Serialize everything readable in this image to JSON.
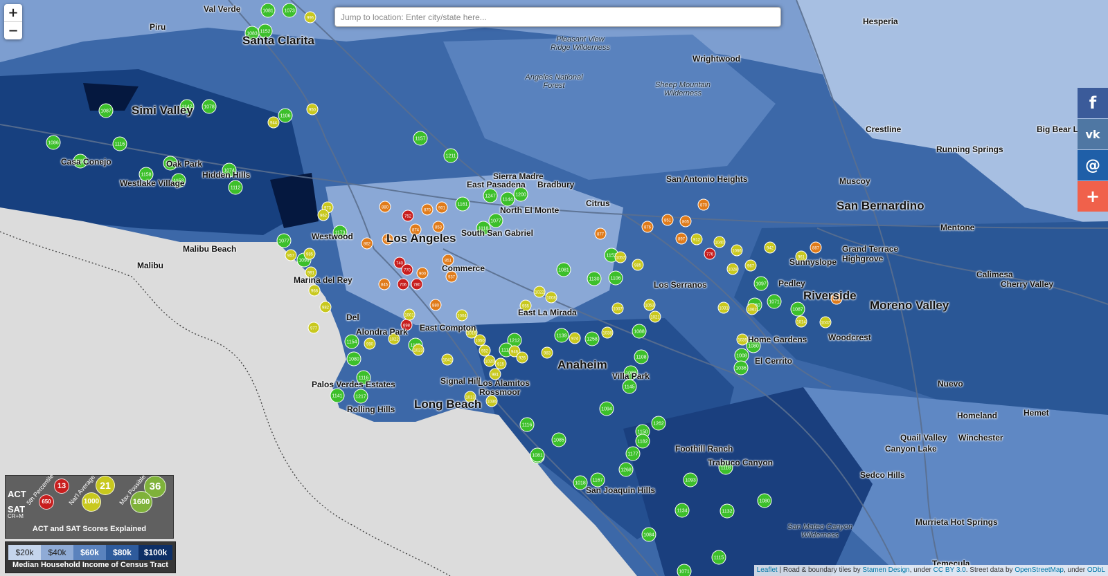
{
  "search": {
    "placeholder": "Jump to location: Enter city/state here..."
  },
  "zoom": {
    "in_label": "+",
    "out_label": "−"
  },
  "social": {
    "facebook": "f",
    "vk": "vk",
    "email": "@",
    "more": "+"
  },
  "colors": {
    "ocean": "#dcdcdc",
    "income_1": "#9fb8dc",
    "income_2": "#6f93c8",
    "income_3": "#4472b0",
    "income_4": "#1f4b8c",
    "income_5": "#0b2a5c",
    "score_red": "#c81e1e",
    "score_orange": "#e07b1a",
    "score_yellow": "#c8c81e",
    "score_green": "#3cbf2a"
  },
  "places": [
    {
      "id": "val-verde",
      "name": "Val Verde",
      "size": "small"
    },
    {
      "id": "santa-clarita",
      "name": "Santa Clarita",
      "size": "big"
    },
    {
      "id": "piru",
      "name": "Piru",
      "size": "small"
    },
    {
      "id": "simi-valley",
      "name": "Simi Valley",
      "size": "big"
    },
    {
      "id": "camarillo-oak",
      "name": "Oak Park",
      "size": "small"
    },
    {
      "id": "castle-conejo",
      "name": "Casa Conejo",
      "size": "small"
    },
    {
      "id": "westlake",
      "name": "Westlake Village",
      "size": "small"
    },
    {
      "id": "hidden-hills",
      "name": "Hidden Hills",
      "size": "small"
    },
    {
      "id": "malibu-beach",
      "name": "Malibu Beach",
      "size": "small"
    },
    {
      "id": "malibu",
      "name": "Malibu",
      "size": "small"
    },
    {
      "id": "westwood",
      "name": "Westwood",
      "size": "small"
    },
    {
      "id": "los-angeles",
      "name": "Los Angeles",
      "size": "big"
    },
    {
      "id": "marina",
      "name": "Marina del Rey",
      "size": "small"
    },
    {
      "id": "commerce",
      "name": "Commerce",
      "size": "small"
    },
    {
      "id": "del",
      "name": "Del",
      "size": "small"
    },
    {
      "id": "alondra",
      "name": "Alondra Park",
      "size": "small"
    },
    {
      "id": "east-compton",
      "name": "East Compton",
      "size": "small"
    },
    {
      "id": "palos-verdes",
      "name": "Palos Verdes Estates",
      "size": "small"
    },
    {
      "id": "rolling-hills",
      "name": "Rolling Hills",
      "size": "small"
    },
    {
      "id": "long-beach",
      "name": "Long Beach",
      "size": "big"
    },
    {
      "id": "signal-hill",
      "name": "Signal Hill",
      "size": "small"
    },
    {
      "id": "los-alamitos",
      "name": "Los Alamitos",
      "size": "small"
    },
    {
      "id": "rossmoor",
      "name": "Rossmoor",
      "size": "small"
    },
    {
      "id": "anaheim",
      "name": "Anaheim",
      "size": "big"
    },
    {
      "id": "villa-park",
      "name": "Villa Park",
      "size": "small"
    },
    {
      "id": "east-la-mirada",
      "name": "East La Mirada",
      "size": "small"
    },
    {
      "id": "sierra-madre",
      "name": "Sierra Madre",
      "size": "small"
    },
    {
      "id": "east-pasadena",
      "name": "East Pasadena",
      "size": "small"
    },
    {
      "id": "bradbury",
      "name": "Bradbury",
      "size": "small"
    },
    {
      "id": "north-el-monte",
      "name": "North El Monte",
      "size": "small"
    },
    {
      "id": "south-san-gabriel",
      "name": "South San Gabriel",
      "size": "small"
    },
    {
      "id": "citrus",
      "name": "Citrus",
      "size": "small"
    },
    {
      "id": "los-serranos",
      "name": "Los Serranos",
      "size": "small"
    },
    {
      "id": "san-antonio-heights",
      "name": "San Antonio Heights",
      "size": "small"
    },
    {
      "id": "wrightwood",
      "name": "Wrightwood",
      "size": "small"
    },
    {
      "id": "hesperia",
      "name": "Hesperia",
      "size": "small"
    },
    {
      "id": "crestline",
      "name": "Crestline",
      "size": "small"
    },
    {
      "id": "running-springs",
      "name": "Running Springs",
      "size": "small"
    },
    {
      "id": "big-bear",
      "name": "Big Bear L",
      "size": "small"
    },
    {
      "id": "muscoy",
      "name": "Muscoy",
      "size": "small"
    },
    {
      "id": "san-bernardino",
      "name": "San Bernardino",
      "size": "big"
    },
    {
      "id": "mentone",
      "name": "Mentone",
      "size": "small"
    },
    {
      "id": "grand-terrace",
      "name": "Grand Terrace",
      "size": "small"
    },
    {
      "id": "highgrove",
      "name": "Highgrove",
      "size": "small"
    },
    {
      "id": "sunnyslope",
      "name": "Sunnyslope",
      "size": "small"
    },
    {
      "id": "pedley",
      "name": "Pedley",
      "size": "small"
    },
    {
      "id": "riverside",
      "name": "Riverside",
      "size": "big"
    },
    {
      "id": "moreno-valley",
      "name": "Moreno Valley",
      "size": "big"
    },
    {
      "id": "calimesa",
      "name": "Calimesa",
      "size": "small"
    },
    {
      "id": "cherry-valley",
      "name": "Cherry Valley",
      "size": "small"
    },
    {
      "id": "home-gardens",
      "name": "Home Gardens",
      "size": "small"
    },
    {
      "id": "woodcrest",
      "name": "Woodcrest",
      "size": "small"
    },
    {
      "id": "el-cerrito",
      "name": "El Cerrito",
      "size": "small"
    },
    {
      "id": "nuevo",
      "name": "Nuevo",
      "size": "small"
    },
    {
      "id": "homeland",
      "name": "Homeland",
      "size": "small"
    },
    {
      "id": "hemet",
      "name": "Hemet",
      "size": "small"
    },
    {
      "id": "quail-valley",
      "name": "Quail Valley",
      "size": "small"
    },
    {
      "id": "canyon-lake",
      "name": "Canyon Lake",
      "size": "small"
    },
    {
      "id": "winchester",
      "name": "Winchester",
      "size": "small"
    },
    {
      "id": "sedco-hills",
      "name": "Sedco Hills",
      "size": "small"
    },
    {
      "id": "foothill-ranch",
      "name": "Foothill Ranch",
      "size": "small"
    },
    {
      "id": "trabuco",
      "name": "Trabuco Canyon",
      "size": "small"
    },
    {
      "id": "san-joaquin-hills",
      "name": "San Joaquin Hills",
      "size": "small"
    },
    {
      "id": "temecula",
      "name": "Temecula",
      "size": "small"
    },
    {
      "id": "hot-springs",
      "name": "Murrieta Hot Springs",
      "size": "small"
    }
  ],
  "wilderness": [
    {
      "id": "pleasant-view",
      "name": "Pleasant View Ridge Wilderness"
    },
    {
      "id": "angeles-nf",
      "name": "Angeles National Forest"
    },
    {
      "id": "sheep-mountain",
      "name": "Sheep Mountain Wilderness"
    },
    {
      "id": "san-mateo",
      "name": "San Mateo Canyon Wilderness"
    }
  ],
  "markers": [
    {
      "id": "m1",
      "score": "1081",
      "level": "green"
    },
    {
      "id": "m2",
      "score": "1073",
      "level": "green"
    },
    {
      "id": "m3",
      "score": "996",
      "level": "yellow"
    },
    {
      "id": "m4",
      "score": "1152",
      "level": "green"
    },
    {
      "id": "m5",
      "score": "1083",
      "level": "green"
    },
    {
      "id": "m6",
      "score": "1087",
      "level": "green"
    },
    {
      "id": "m7",
      "score": "1147",
      "level": "green"
    },
    {
      "id": "m8",
      "score": "1078",
      "level": "green"
    },
    {
      "id": "m9",
      "score": "1086",
      "level": "green"
    },
    {
      "id": "m10",
      "score": "1116",
      "level": "green"
    },
    {
      "id": "m11",
      "score": "1135",
      "level": "green"
    },
    {
      "id": "m12",
      "score": "1150",
      "level": "green"
    },
    {
      "id": "m13",
      "score": "1158",
      "level": "green"
    },
    {
      "id": "m14",
      "score": "1152",
      "level": "green"
    },
    {
      "id": "m15",
      "score": "1112",
      "level": "green"
    },
    {
      "id": "m16",
      "score": "1074",
      "level": "green"
    },
    {
      "id": "m17",
      "score": "1106",
      "level": "green"
    },
    {
      "id": "m18",
      "score": "1077",
      "level": "green"
    },
    {
      "id": "m19",
      "score": "1173",
      "level": "green"
    },
    {
      "id": "m20",
      "score": "1099",
      "level": "green"
    },
    {
      "id": "m21",
      "score": "1211",
      "level": "green"
    },
    {
      "id": "m22",
      "score": "1157",
      "level": "green"
    },
    {
      "id": "m23",
      "score": "1247",
      "level": "green"
    },
    {
      "id": "m24",
      "score": "1144",
      "level": "green"
    },
    {
      "id": "m25",
      "score": "1200",
      "level": "green"
    },
    {
      "id": "m26",
      "score": "1161",
      "level": "green"
    },
    {
      "id": "m27",
      "score": "1077",
      "level": "green"
    },
    {
      "id": "m28",
      "score": "1118",
      "level": "green"
    },
    {
      "id": "m29",
      "score": "1153",
      "level": "green"
    },
    {
      "id": "m30",
      "score": "1130",
      "level": "green"
    },
    {
      "id": "m31",
      "score": "1106",
      "level": "green"
    },
    {
      "id": "m32",
      "score": "1081",
      "level": "green"
    },
    {
      "id": "m33",
      "score": "1139",
      "level": "green"
    },
    {
      "id": "m34",
      "score": "1258",
      "level": "green"
    },
    {
      "id": "m35",
      "score": "1212",
      "level": "green"
    },
    {
      "id": "m36",
      "score": "1118",
      "level": "green"
    },
    {
      "id": "m37",
      "score": "1165",
      "level": "green"
    },
    {
      "id": "m38",
      "score": "1154",
      "level": "green"
    },
    {
      "id": "m39",
      "score": "1080",
      "level": "green"
    },
    {
      "id": "m40",
      "score": "1116",
      "level": "green"
    },
    {
      "id": "m41",
      "score": "1217",
      "level": "green"
    },
    {
      "id": "m42",
      "score": "1141",
      "level": "green"
    },
    {
      "id": "m43",
      "score": "1262",
      "level": "green"
    },
    {
      "id": "m44",
      "score": "1150",
      "level": "green"
    },
    {
      "id": "m45",
      "score": "1182",
      "level": "green"
    },
    {
      "id": "m46",
      "score": "1177",
      "level": "green"
    },
    {
      "id": "m47",
      "score": "1268",
      "level": "green"
    },
    {
      "id": "m48",
      "score": "1167",
      "level": "green"
    },
    {
      "id": "m49",
      "score": "1093",
      "level": "green"
    },
    {
      "id": "m50",
      "score": "1118",
      "level": "green"
    },
    {
      "id": "m51",
      "score": "1132",
      "level": "green"
    },
    {
      "id": "m52",
      "score": "1134",
      "level": "green"
    },
    {
      "id": "m53",
      "score": "1084",
      "level": "green"
    },
    {
      "id": "m54",
      "score": "1071",
      "level": "green"
    },
    {
      "id": "m55",
      "score": "1115",
      "level": "green"
    },
    {
      "id": "m56",
      "score": "1088",
      "level": "green"
    },
    {
      "id": "m57",
      "score": "1108",
      "level": "green"
    },
    {
      "id": "m58",
      "score": "1088",
      "level": "green"
    },
    {
      "id": "m59",
      "score": "1145",
      "level": "green"
    },
    {
      "id": "m60",
      "score": "1094",
      "level": "green"
    },
    {
      "id": "m61",
      "score": "1116",
      "level": "green"
    },
    {
      "id": "m62",
      "score": "1085",
      "level": "green"
    },
    {
      "id": "m63",
      "score": "1089",
      "level": "green"
    },
    {
      "id": "m64",
      "score": "1081",
      "level": "green"
    },
    {
      "id": "m65",
      "score": "1018",
      "level": "green"
    },
    {
      "id": "m66",
      "score": "1080",
      "level": "green"
    },
    {
      "id": "m67",
      "score": "1008",
      "level": "green"
    },
    {
      "id": "m68",
      "score": "1036",
      "level": "green"
    },
    {
      "id": "m69",
      "score": "1060",
      "level": "green"
    },
    {
      "id": "m70",
      "score": "752",
      "level": "red"
    },
    {
      "id": "m71",
      "score": "740",
      "level": "red"
    },
    {
      "id": "m72",
      "score": "770",
      "level": "red"
    },
    {
      "id": "m73",
      "score": "706",
      "level": "red"
    },
    {
      "id": "m74",
      "score": "780",
      "level": "red"
    },
    {
      "id": "m75",
      "score": "698",
      "level": "red"
    },
    {
      "id": "m76",
      "score": "880",
      "level": "orange"
    },
    {
      "id": "m77",
      "score": "870",
      "level": "orange"
    },
    {
      "id": "m78",
      "score": "899",
      "level": "orange"
    },
    {
      "id": "m79",
      "score": "862",
      "level": "orange"
    },
    {
      "id": "m80",
      "score": "901",
      "level": "orange"
    },
    {
      "id": "m81",
      "score": "874",
      "level": "orange"
    },
    {
      "id": "m82",
      "score": "853",
      "level": "orange"
    },
    {
      "id": "m83",
      "score": "900",
      "level": "orange"
    },
    {
      "id": "m84",
      "score": "851",
      "level": "orange"
    },
    {
      "id": "m85",
      "score": "937",
      "level": "orange"
    },
    {
      "id": "m86",
      "score": "845",
      "level": "orange"
    },
    {
      "id": "m87",
      "score": "880",
      "level": "orange"
    },
    {
      "id": "m88",
      "score": "944",
      "level": "yellow"
    },
    {
      "id": "m89",
      "score": "950",
      "level": "yellow"
    },
    {
      "id": "m90",
      "score": "973",
      "level": "yellow"
    },
    {
      "id": "m91",
      "score": "962",
      "level": "yellow"
    },
    {
      "id": "m92",
      "score": "985",
      "level": "yellow"
    },
    {
      "id": "m93",
      "score": "957",
      "level": "yellow"
    },
    {
      "id": "m94",
      "score": "991",
      "level": "yellow"
    },
    {
      "id": "m95",
      "score": "968",
      "level": "yellow"
    },
    {
      "id": "m96",
      "score": "982",
      "level": "yellow"
    },
    {
      "id": "m97",
      "score": "977",
      "level": "yellow"
    },
    {
      "id": "m98",
      "score": "990",
      "level": "yellow"
    },
    {
      "id": "m99",
      "score": "1022",
      "level": "yellow"
    },
    {
      "id": "m100",
      "score": "1001",
      "level": "yellow"
    },
    {
      "id": "m101",
      "score": "1023",
      "level": "yellow"
    },
    {
      "id": "m102",
      "score": "1041",
      "level": "yellow"
    },
    {
      "id": "m103",
      "score": "1004",
      "level": "yellow"
    },
    {
      "id": "m104",
      "score": "1016",
      "level": "yellow"
    },
    {
      "id": "m105",
      "score": "1050",
      "level": "yellow"
    },
    {
      "id": "m106",
      "score": "1020",
      "level": "yellow"
    },
    {
      "id": "m107",
      "score": "1036",
      "level": "yellow"
    },
    {
      "id": "m108",
      "score": "1013",
      "level": "yellow"
    },
    {
      "id": "m109",
      "score": "981",
      "level": "yellow"
    },
    {
      "id": "m110",
      "score": "946",
      "level": "yellow"
    },
    {
      "id": "m111",
      "score": "926",
      "level": "yellow"
    },
    {
      "id": "m112",
      "score": "915",
      "level": "yellow"
    },
    {
      "id": "m113",
      "score": "955",
      "level": "yellow"
    },
    {
      "id": "m114",
      "score": "1022",
      "level": "yellow"
    },
    {
      "id": "m115",
      "score": "1008",
      "level": "yellow"
    },
    {
      "id": "m116",
      "score": "983",
      "level": "yellow"
    },
    {
      "id": "m117",
      "score": "952",
      "level": "yellow"
    },
    {
      "id": "m118",
      "score": "974",
      "level": "yellow"
    },
    {
      "id": "m119",
      "score": "1038",
      "level": "yellow"
    },
    {
      "id": "m120",
      "score": "1021",
      "level": "yellow"
    },
    {
      "id": "m121",
      "score": "1053",
      "level": "yellow"
    },
    {
      "id": "m122",
      "score": "1007",
      "level": "yellow"
    },
    {
      "id": "m123",
      "score": "985",
      "level": "yellow"
    },
    {
      "id": "m124",
      "score": "1057",
      "level": "yellow"
    },
    {
      "id": "m125",
      "score": "877",
      "level": "orange"
    },
    {
      "id": "m126",
      "score": "876",
      "level": "orange"
    },
    {
      "id": "m127",
      "score": "851",
      "level": "orange"
    },
    {
      "id": "m128",
      "score": "805",
      "level": "orange"
    },
    {
      "id": "m129",
      "score": "870",
      "level": "orange"
    },
    {
      "id": "m130",
      "score": "776",
      "level": "red"
    },
    {
      "id": "m131",
      "score": "897",
      "level": "orange"
    },
    {
      "id": "m132",
      "score": "912",
      "level": "yellow"
    },
    {
      "id": "m133",
      "score": "1040",
      "level": "yellow"
    },
    {
      "id": "m134",
      "score": "1066",
      "level": "yellow"
    },
    {
      "id": "m135",
      "score": "1028",
      "level": "yellow"
    },
    {
      "id": "m136",
      "score": "967",
      "level": "yellow"
    },
    {
      "id": "m137",
      "score": "942",
      "level": "yellow"
    },
    {
      "id": "m138",
      "score": "961",
      "level": "yellow"
    },
    {
      "id": "m139",
      "score": "887",
      "level": "orange"
    },
    {
      "id": "m140",
      "score": "862",
      "level": "orange"
    },
    {
      "id": "m141",
      "score": "1047",
      "level": "yellow"
    },
    {
      "id": "m142",
      "score": "1014",
      "level": "yellow"
    },
    {
      "id": "m143",
      "score": "1087",
      "level": "green"
    },
    {
      "id": "m144",
      "score": "1071",
      "level": "green"
    },
    {
      "id": "m145",
      "score": "1097",
      "level": "green"
    },
    {
      "id": "m146",
      "score": "1062",
      "level": "yellow"
    },
    {
      "id": "m147",
      "score": "1031",
      "level": "yellow"
    },
    {
      "id": "m148",
      "score": "1039",
      "level": "yellow"
    },
    {
      "id": "m149",
      "score": "1080",
      "level": "green"
    },
    {
      "id": "m150",
      "score": "1073",
      "level": "green"
    }
  ],
  "score_legend": {
    "act_label": "ACT",
    "sat_label": "SAT",
    "sat_sub": "CR+M",
    "col1_caption": "5th Percentile",
    "col2_caption": "Nat'l Average",
    "col3_caption": "Max Possible",
    "act_values": [
      "13",
      "21",
      "36"
    ],
    "sat_values": [
      "650",
      "1000",
      "1600"
    ],
    "title": "ACT and SAT Scores Explained"
  },
  "income_legend": {
    "bins": [
      "$20k",
      "$40k",
      "$60k",
      "$80k",
      "$100k"
    ],
    "title": "Median Household Income of Census Tract"
  },
  "attribution": {
    "leaflet": "Leaflet",
    "text1": " | Road & boundary tiles by ",
    "stamen": "Stamen Design",
    "text2": ", under ",
    "ccby": "CC BY 3.0",
    "text3": ". Street data by ",
    "osm": "OpenStreetMap",
    "text4": ", under ",
    "odbl": "ODbL"
  }
}
